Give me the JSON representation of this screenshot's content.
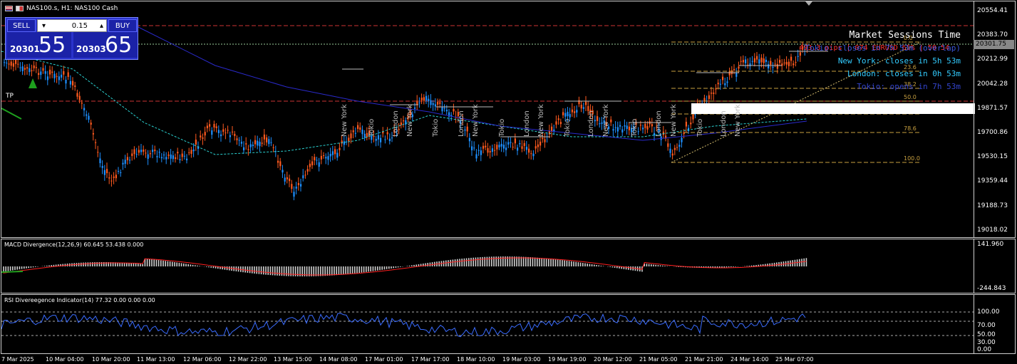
{
  "window": {
    "symbol_title": "NAS100.s, H1:  NAS100 Cash"
  },
  "trade_panel": {
    "sell_label": "SELL",
    "buy_label": "BUY",
    "lot_value": "0.15",
    "minus_icon": "minus-icon",
    "plus_icon": "plus-icon",
    "bid_small": "20301",
    "bid_big": "55",
    "ask_small": "20303",
    "ask_big": "65"
  },
  "tp_label": "TP",
  "main_axis": {
    "ticks": [
      "20554.41",
      "20383.70",
      "20212.99",
      "20042.28",
      "19871.57",
      "19700.86",
      "19530.15",
      "19359.44",
      "19188.73",
      "19018.02"
    ],
    "price_tag": "20301.75"
  },
  "market_sessions": {
    "title": "Market Sessions Time",
    "lines": [
      {
        "text": "Tokio: closes in 7h 53m (overlap)",
        "color": "#4466ff"
      },
      {
        "text": "New York: closes in 5h 53m",
        "color": "#33ccff"
      },
      {
        "text": "London: closes in 0h 53m",
        "color": "#33ccff"
      },
      {
        "text": "Tokio: opens in 7h 53m",
        "color": "#3344cc"
      }
    ],
    "overlay_red": "493.3 pips | 074 EURUSD 65% | 50 54"
  },
  "fibo_levels": [
    "0.0",
    "23.6",
    "38.2",
    "50.0",
    "61.8",
    "78.6",
    "100.0"
  ],
  "session_labels": [
    "New York",
    "Tokio",
    "London",
    "New York",
    "Tokio",
    "London",
    "New York",
    "Tokio",
    "London",
    "New York",
    "Tokio",
    "London",
    "New York",
    "Tokio",
    "London",
    "New York",
    "Tokio",
    "London",
    "New York"
  ],
  "macd": {
    "title": "MACD Divergence(12,26,9) 60.645 53.438 0.000",
    "ticks": [
      "141.960",
      "-244.843"
    ]
  },
  "rsi": {
    "title": "RSI Divereegence Indicator(14) 77.32 0.00 0.00 0.00",
    "ticks": [
      "100.00",
      "70.00",
      "50.00",
      "30.00",
      "0.00"
    ]
  },
  "time_axis": [
    "7 Mar 2025",
    "10 Mar 04:00",
    "10 Mar 20:00",
    "11 Mar 13:00",
    "12 Mar 06:00",
    "12 Mar 22:00",
    "13 Mar 15:00",
    "14 Mar 08:00",
    "17 Mar 01:00",
    "17 Mar 17:00",
    "18 Mar 10:00",
    "19 Mar 03:00",
    "19 Mar 19:00",
    "20 Mar 12:00",
    "21 Mar 05:00",
    "21 Mar 21:00",
    "24 Mar 14:00",
    "25 Mar 07:00"
  ],
  "colors": {
    "bull": "#1e90ff",
    "bear": "#ff5a1f",
    "grid_red": "#cc3333",
    "fib": "#c8a040",
    "macd_signal": "#ff2020",
    "rsi_line": "#3a6cff"
  }
}
